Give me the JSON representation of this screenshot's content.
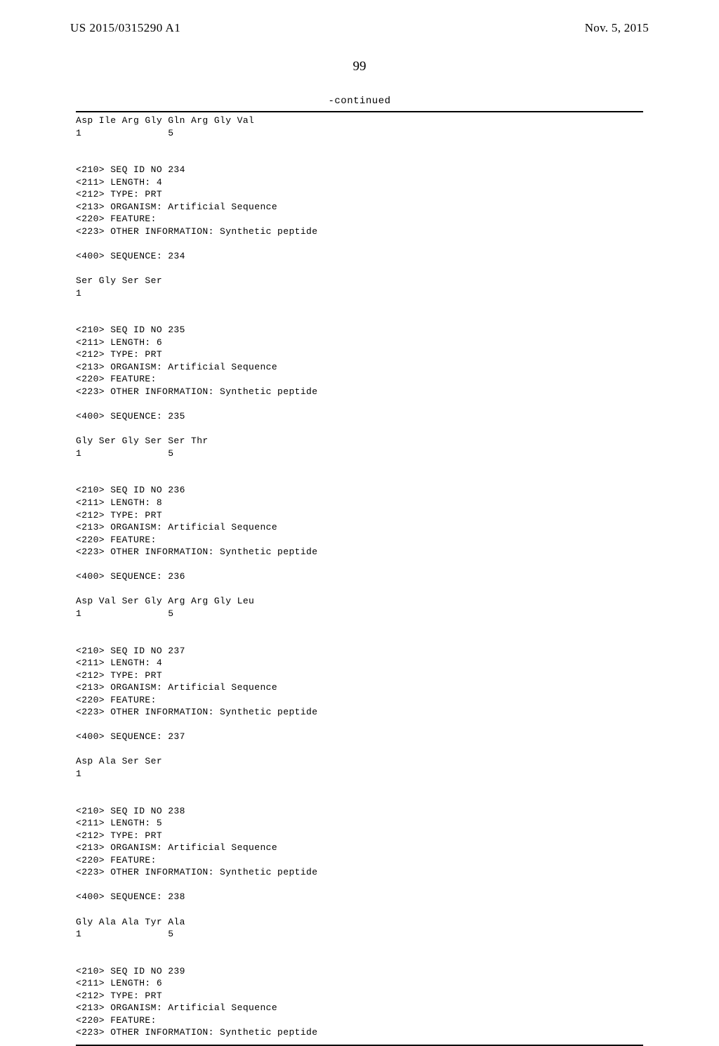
{
  "header": {
    "pub_number": "US 2015/0315290 A1",
    "pub_date": "Nov. 5, 2015"
  },
  "page_number": "99",
  "continued_label": "-continued",
  "sequences": [
    {
      "peptide_line": "Asp Ile Arg Gly Gln Arg Gly Val",
      "position_line": "1               5"
    },
    {
      "header": [
        "<210> SEQ ID NO 234",
        "<211> LENGTH: 4",
        "<212> TYPE: PRT",
        "<213> ORGANISM: Artificial Sequence",
        "<220> FEATURE:",
        "<223> OTHER INFORMATION: Synthetic peptide"
      ],
      "sequence_label": "<400> SEQUENCE: 234",
      "peptide_line": "Ser Gly Ser Ser",
      "position_line": "1"
    },
    {
      "header": [
        "<210> SEQ ID NO 235",
        "<211> LENGTH: 6",
        "<212> TYPE: PRT",
        "<213> ORGANISM: Artificial Sequence",
        "<220> FEATURE:",
        "<223> OTHER INFORMATION: Synthetic peptide"
      ],
      "sequence_label": "<400> SEQUENCE: 235",
      "peptide_line": "Gly Ser Gly Ser Ser Thr",
      "position_line": "1               5"
    },
    {
      "header": [
        "<210> SEQ ID NO 236",
        "<211> LENGTH: 8",
        "<212> TYPE: PRT",
        "<213> ORGANISM: Artificial Sequence",
        "<220> FEATURE:",
        "<223> OTHER INFORMATION: Synthetic peptide"
      ],
      "sequence_label": "<400> SEQUENCE: 236",
      "peptide_line": "Asp Val Ser Gly Arg Arg Gly Leu",
      "position_line": "1               5"
    },
    {
      "header": [
        "<210> SEQ ID NO 237",
        "<211> LENGTH: 4",
        "<212> TYPE: PRT",
        "<213> ORGANISM: Artificial Sequence",
        "<220> FEATURE:",
        "<223> OTHER INFORMATION: Synthetic peptide"
      ],
      "sequence_label": "<400> SEQUENCE: 237",
      "peptide_line": "Asp Ala Ser Ser",
      "position_line": "1"
    },
    {
      "header": [
        "<210> SEQ ID NO 238",
        "<211> LENGTH: 5",
        "<212> TYPE: PRT",
        "<213> ORGANISM: Artificial Sequence",
        "<220> FEATURE:",
        "<223> OTHER INFORMATION: Synthetic peptide"
      ],
      "sequence_label": "<400> SEQUENCE: 238",
      "peptide_line": "Gly Ala Ala Tyr Ala",
      "position_line": "1               5"
    },
    {
      "header": [
        "<210> SEQ ID NO 239",
        "<211> LENGTH: 6",
        "<212> TYPE: PRT",
        "<213> ORGANISM: Artificial Sequence",
        "<220> FEATURE:",
        "<223> OTHER INFORMATION: Synthetic peptide"
      ]
    }
  ]
}
